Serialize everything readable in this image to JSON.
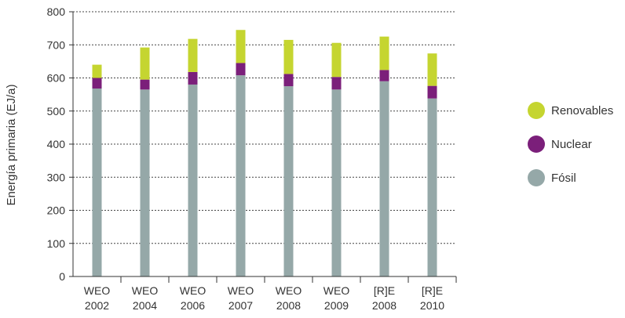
{
  "chart_data": {
    "type": "bar",
    "stacked": true,
    "categories": [
      [
        "WEO",
        "2002"
      ],
      [
        "WEO",
        "2004"
      ],
      [
        "WEO",
        "2006"
      ],
      [
        "WEO",
        "2007"
      ],
      [
        "WEO",
        "2008"
      ],
      [
        "WEO",
        "2009"
      ],
      [
        "[R]E",
        "2008"
      ],
      [
        "[R]E",
        "2010"
      ]
    ],
    "series": [
      {
        "name": "Fósil",
        "color": "#95a8a8",
        "values": [
          568,
          565,
          580,
          608,
          575,
          565,
          590,
          538
        ]
      },
      {
        "name": "Nuclear",
        "color": "#7b1f7a",
        "values": [
          32,
          30,
          38,
          37,
          37,
          38,
          34,
          38
        ]
      },
      {
        "name": "Renovables",
        "color": "#c5d530",
        "values": [
          40,
          97,
          100,
          100,
          103,
          103,
          101,
          98
        ]
      }
    ],
    "legend_order": [
      "Renovables",
      "Nuclear",
      "Fósil"
    ],
    "legend_position": "right",
    "ylabel": "Energía primaria (EJ/a)",
    "ylim": [
      0,
      800
    ],
    "yticks": [
      0,
      100,
      200,
      300,
      400,
      500,
      600,
      700,
      800
    ],
    "grid": "horizontal dotted"
  }
}
